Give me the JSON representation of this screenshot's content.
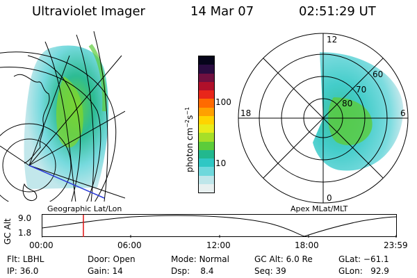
{
  "header": {
    "title": "Ultraviolet Imager",
    "date": "14 Mar 07",
    "time": "02:51:29 UT"
  },
  "colorbar": {
    "unit_label": "photon cm",
    "unit_exp1": "−2",
    "unit_mid": "s",
    "unit_exp2": "−1",
    "ticks": [
      "100",
      "10"
    ],
    "colors": [
      "#e8f0f0",
      "#bfe6ea",
      "#6fd8dc",
      "#2fc7c4",
      "#22b88e",
      "#5ccc3a",
      "#a6df28",
      "#e8ec1a",
      "#ffd400",
      "#ffa000",
      "#ff6a00",
      "#e8261a",
      "#b0102a",
      "#701040",
      "#2a0c40",
      "#06041a"
    ]
  },
  "geo_panel": {
    "caption": "Geographic Lat/Lon"
  },
  "polar_panel": {
    "caption": "Apex MLat/MLT",
    "mlt_labels": {
      "top": "12",
      "left": "18",
      "right": "6",
      "bottom": "0"
    },
    "lat_labels": [
      "60",
      "70",
      "80"
    ]
  },
  "timeline": {
    "axis_label": "GC Alt",
    "y_ticks": [
      "9.0",
      "1.8"
    ],
    "x_ticks": [
      "00:00",
      "06:00",
      "12:00",
      "18:00",
      "23:59"
    ],
    "marker_time": "02:51"
  },
  "params": {
    "flt_key": "Flt:",
    "flt_val": "LBHL",
    "ip_key": "IP:",
    "ip_val": "36.0",
    "door_key": "Door:",
    "door_val": "Open",
    "gain_key": "Gain:",
    "gain_val": "14",
    "mode_key": "Mode:",
    "mode_val": "Normal",
    "dsp_key": "Dsp:",
    "dsp_val": "8.4",
    "gcalt_key": "GC Alt:",
    "gcalt_val": "6.0 Re",
    "seq_key": "Seq:",
    "seq_val": "39",
    "glat_key": "GLat:",
    "glat_val": "−61.1",
    "glon_key": "GLon:",
    "glon_val": "92.9"
  }
}
